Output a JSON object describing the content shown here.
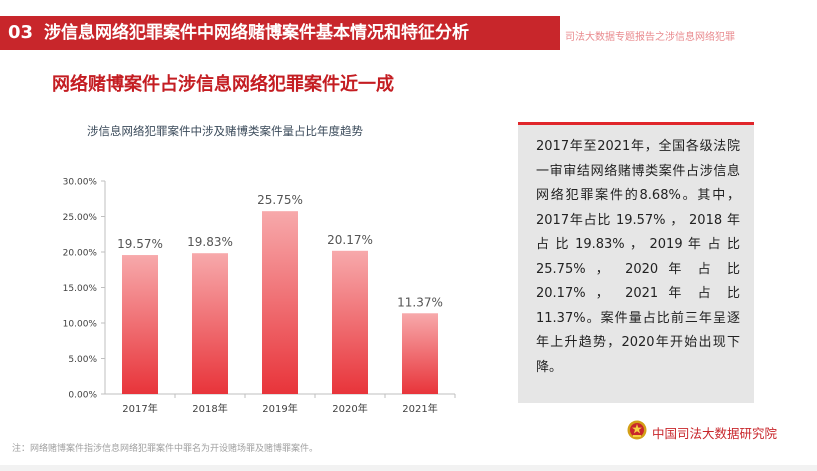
{
  "header": {
    "number": "03",
    "title": "涉信息网络犯罪案件中网络赌博案件基本情况和特征分析",
    "subtitle": "司法大数据专题报告之涉信息网络犯罪"
  },
  "subheading": "网络赌博案件占涉信息网络犯罪案件近一成",
  "chart_data": {
    "type": "bar",
    "title": "涉信息网络犯罪案件中涉及赌博类案件量占比年度趋势",
    "categories": [
      "2017年",
      "2018年",
      "2019年",
      "2020年",
      "2021年"
    ],
    "values": [
      19.57,
      19.83,
      25.75,
      20.17,
      11.37
    ],
    "value_labels": [
      "19.57%",
      "19.83%",
      "25.75%",
      "20.17%",
      "11.37%"
    ],
    "y_ticks": [
      "0.00%",
      "5.00%",
      "10.00%",
      "15.00%",
      "20.00%",
      "25.00%",
      "30.00%"
    ],
    "ylim": [
      0,
      30
    ],
    "xlabel": "",
    "ylabel": "",
    "grid": false,
    "bar_color_top": "#f7a9ab",
    "bar_color_bottom": "#e8343a"
  },
  "textbox": {
    "body": "2017年至2021年，全国各级法院一审审结网络赌博类案件占涉信息网络犯罪案件的8.68%。其中，2017年占比 19.57% ， 2018 年 占 比 19.83% ， 2019 年 占 比 25.75% ， 2020 年 占 比 20.17% ， 2021 年 占 比 11.37%。案件量占比前三年呈逐年上升趋势，2020年开始出现下降。"
  },
  "footnote": "注：网络赌博案件指涉信息网络犯罪案件中罪名为开设赌场罪及赌博罪案件。",
  "logo": {
    "icon": "national-emblem-icon",
    "text": "中国司法大数据研究院"
  }
}
